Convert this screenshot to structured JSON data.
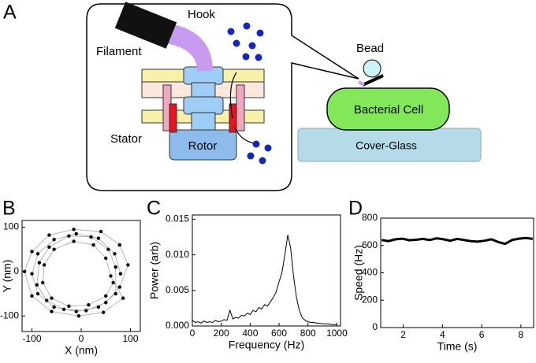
{
  "diagram": {
    "panel": "A",
    "hook": "Hook",
    "filament": "Filament",
    "stator": "Stator",
    "rotor": "Rotor",
    "bead": "Bead",
    "cell": "Bacterial Cell",
    "glass": "Cover-Glass"
  },
  "chart_data": [
    {
      "panel": "B",
      "type": "scatter",
      "xlabel": "X (nm)",
      "ylabel": "Y (nm)",
      "color": "#000000",
      "line_color": "#999999",
      "x": [
        80,
        68,
        35,
        -10,
        -55,
        -88,
        -100,
        -88,
        -55,
        -10,
        35,
        70,
        70,
        55,
        20,
        -25,
        -65,
        -85,
        -90,
        -70,
        -35,
        10,
        50,
        78,
        95,
        78,
        40,
        -15,
        -65,
        -100,
        -115,
        -100,
        -60,
        -5,
        45,
        85,
        60,
        50,
        25,
        -15,
        -55,
        -75,
        -78,
        -60,
        -25,
        15,
        50,
        65
      ],
      "values": [
        -5,
        40,
        75,
        85,
        72,
        40,
        -5,
        -50,
        -80,
        -90,
        -80,
        -50,
        10,
        50,
        78,
        80,
        55,
        20,
        -30,
        -65,
        -85,
        -88,
        -70,
        -35,
        15,
        60,
        90,
        95,
        82,
        45,
        0,
        -55,
        -90,
        -100,
        -92,
        -60,
        -10,
        30,
        60,
        68,
        50,
        15,
        -25,
        -60,
        -78,
        -75,
        -55,
        -25
      ],
      "xlim": [
        -120,
        120
      ],
      "ylim": [
        -135,
        115
      ],
      "xticks": [
        -100,
        0,
        100
      ],
      "yticks": [
        -100,
        0,
        100
      ]
    },
    {
      "panel": "C",
      "type": "line",
      "xlabel": "Frequency (Hz)",
      "ylabel": "Power (arb)",
      "color": "#000000",
      "x": [
        0,
        20,
        40,
        60,
        80,
        100,
        120,
        140,
        160,
        180,
        200,
        220,
        240,
        260,
        280,
        300,
        320,
        340,
        360,
        380,
        400,
        420,
        440,
        460,
        480,
        500,
        520,
        540,
        560,
        580,
        600,
        620,
        640,
        660,
        680,
        700,
        720,
        740,
        760,
        780,
        800,
        820,
        840,
        860,
        880,
        900,
        920,
        940,
        960,
        980,
        1000
      ],
      "values": [
        0.0008,
        0.0005,
        0.0006,
        0.0004,
        0.0007,
        0.0005,
        0.0006,
        0.0005,
        0.0008,
        0.0006,
        0.0007,
        0.0009,
        0.0008,
        0.0022,
        0.001,
        0.0012,
        0.0011,
        0.0015,
        0.0014,
        0.0018,
        0.0016,
        0.0022,
        0.002,
        0.0026,
        0.0024,
        0.003,
        0.0028,
        0.0034,
        0.004,
        0.0048,
        0.0062,
        0.0075,
        0.01,
        0.0128,
        0.011,
        0.007,
        0.004,
        0.0022,
        0.0012,
        0.0008,
        0.0006,
        0.0005,
        0.0005,
        0.0004,
        0.0004,
        0.0003,
        0.0003,
        0.0003,
        0.0002,
        0.0002,
        0.0002
      ],
      "xlim": [
        0,
        1025
      ],
      "ylim": [
        0,
        0.0156
      ],
      "xticks": [
        0,
        200,
        400,
        600,
        800,
        1000
      ],
      "yticks": [
        {
          "value": 0,
          "label": "0.000"
        },
        0.005,
        {
          "value": 0.01,
          "label": "0.010"
        },
        0.015
      ]
    },
    {
      "panel": "D",
      "type": "line",
      "xlabel": "Time (s)",
      "ylabel": "Speed (Hz)",
      "color": "#000000",
      "x": [
        0.9,
        1.25,
        1.6,
        1.95,
        2.3,
        2.65,
        3.0,
        3.35,
        3.7,
        4.05,
        4.4,
        4.75,
        5.1,
        5.45,
        5.8,
        6.15,
        6.5,
        6.85,
        7.2,
        7.55,
        7.9,
        8.25,
        8.6
      ],
      "values": [
        640,
        632,
        645,
        650,
        638,
        642,
        648,
        640,
        652,
        645,
        635,
        648,
        640,
        632,
        628,
        635,
        645,
        625,
        612,
        640,
        650,
        655,
        648
      ],
      "xlim": [
        0.85,
        8.65
      ],
      "ylim": [
        0,
        800
      ],
      "xticks": [
        2,
        4,
        6,
        8
      ],
      "yticks": [
        0,
        200,
        400,
        600,
        800
      ]
    }
  ]
}
